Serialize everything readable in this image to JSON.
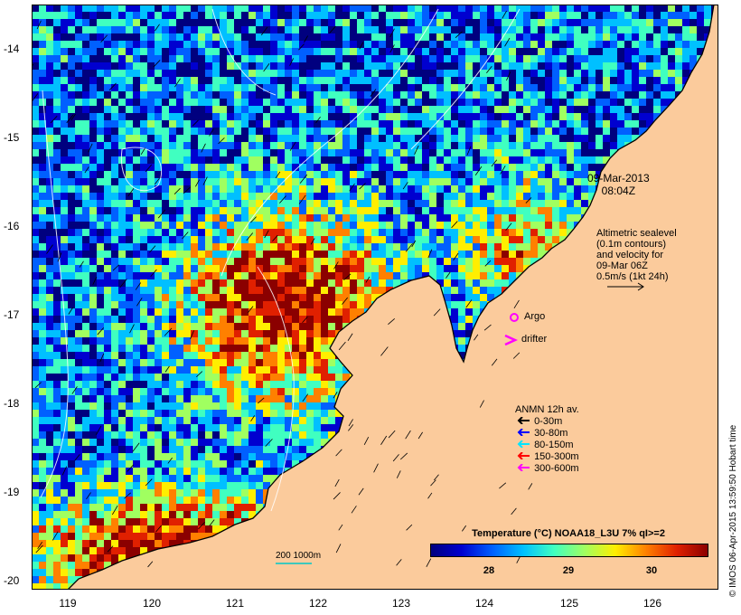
{
  "map": {
    "lat_labels": [
      "-14",
      "-15",
      "-16",
      "-17",
      "-18",
      "-19",
      "-20"
    ],
    "lon_labels": [
      "119",
      "120",
      "121",
      "122",
      "123",
      "124",
      "125",
      "126"
    ],
    "lat_range": [
      -20.05,
      -13.55
    ],
    "lon_range": [
      118.62,
      126.7
    ],
    "colors": {
      "land": "#fbcb9c",
      "sea_cold": "#0a1f9e",
      "sea_warm": "#a00000",
      "coast": "#000000",
      "contour": "#ffffff"
    }
  },
  "annotations": {
    "date_line1": "09-Mar-2013",
    "date_line2": "08:04Z",
    "altimetric": [
      "Altimetric sealevel",
      "(0.1m contours)",
      "and velocity for",
      "09-Mar 06Z",
      "0.5m/s (1kt 24h)"
    ],
    "argo": "Argo",
    "drifter": "drifter",
    "argo_color": "#ff00ff",
    "drifter_color": "#ff00ff"
  },
  "anmn_legend": {
    "title": "ANMN 12h av.",
    "entries": [
      {
        "label": "0-30m",
        "color": "#000000"
      },
      {
        "label": "30-80m",
        "color": "#0000ff"
      },
      {
        "label": "80-150m",
        "color": "#00e5ff"
      },
      {
        "label": "150-300m",
        "color": "#ff0000"
      },
      {
        "label": "300-600m",
        "color": "#ff00ff"
      }
    ]
  },
  "scale_bar": {
    "label": "200  1000m"
  },
  "colorbar": {
    "title": "Temperature (°C) NOAA18_L3U 7% qI>=2",
    "ticks": [
      "28",
      "29",
      "30"
    ],
    "stops": [
      "#00007f",
      "#0000d0",
      "#0060ff",
      "#00c0ff",
      "#40ffc0",
      "#a0ff60",
      "#ffee00",
      "#ff8000",
      "#e02000",
      "#8b0000"
    ]
  },
  "credit": "© IMOS 06-Apr-2015 13:59:50 Hobart time"
}
